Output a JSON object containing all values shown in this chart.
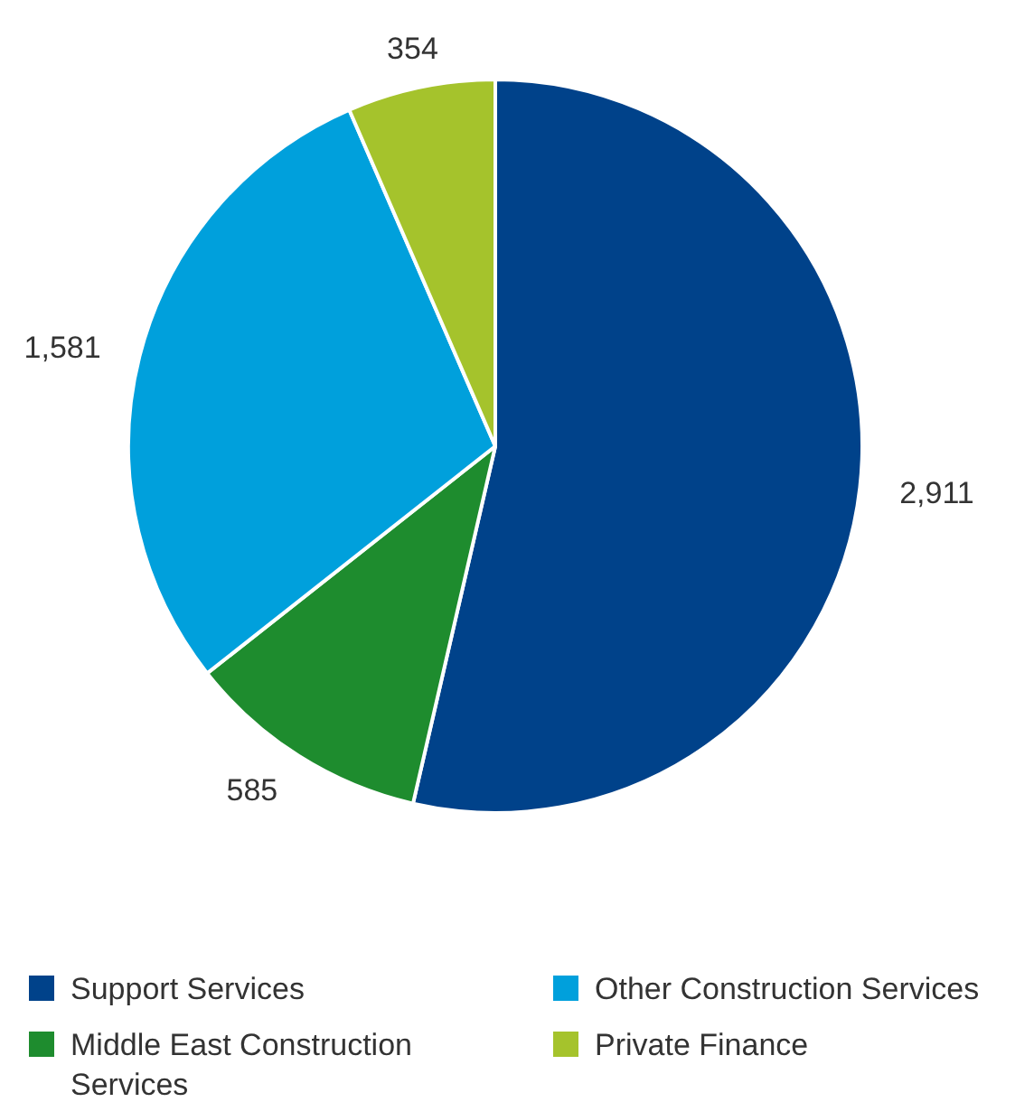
{
  "chart_data": {
    "type": "pie",
    "categories": [
      "Support Services",
      "Middle East Construction Services",
      "Other Construction Services",
      "Private Finance"
    ],
    "values": [
      2911,
      585,
      1581,
      354
    ],
    "value_labels": [
      "2,911",
      "585",
      "1,581",
      "354"
    ],
    "colors": [
      "#00428a",
      "#1e8c2e",
      "#00a0dc",
      "#a5c32c"
    ],
    "legend": "bottom"
  }
}
